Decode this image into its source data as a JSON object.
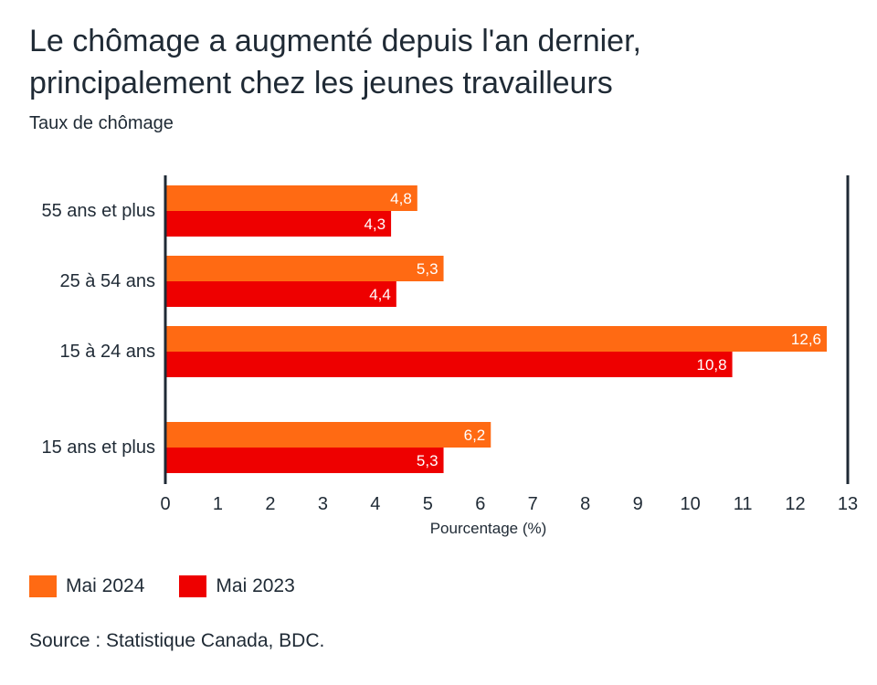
{
  "title": "Le chômage a augmenté depuis l'an dernier, principalement chez les jeunes travailleurs",
  "subtitle": "Taux de chômage",
  "source": "Source : Statistique Canada, BDC.",
  "colors": {
    "mai2024": "#ff6a13",
    "mai2023": "#ee0000",
    "axis": "#1f2a35"
  },
  "chart_data": {
    "type": "bar",
    "orientation": "horizontal",
    "categories": [
      "55 ans et plus",
      "25 à 54 ans",
      "15 à 24 ans",
      "15 ans et plus"
    ],
    "series": [
      {
        "name": "Mai 2024",
        "values": [
          4.8,
          5.3,
          12.6,
          6.2
        ],
        "labels": [
          "4,8",
          "5,3",
          "12,6",
          "6,2"
        ]
      },
      {
        "name": "Mai 2023",
        "values": [
          4.3,
          4.4,
          10.8,
          5.3
        ],
        "labels": [
          "4,3",
          "4,4",
          "10,8",
          "5,3"
        ]
      }
    ],
    "xlabel": "Pourcentage (%)",
    "xlim": [
      0,
      13
    ],
    "xticks": [
      "0",
      "1",
      "2",
      "3",
      "4",
      "5",
      "6",
      "7",
      "8",
      "9",
      "10",
      "11",
      "12",
      "13"
    ],
    "grid": false,
    "legend": "bottom-left"
  }
}
